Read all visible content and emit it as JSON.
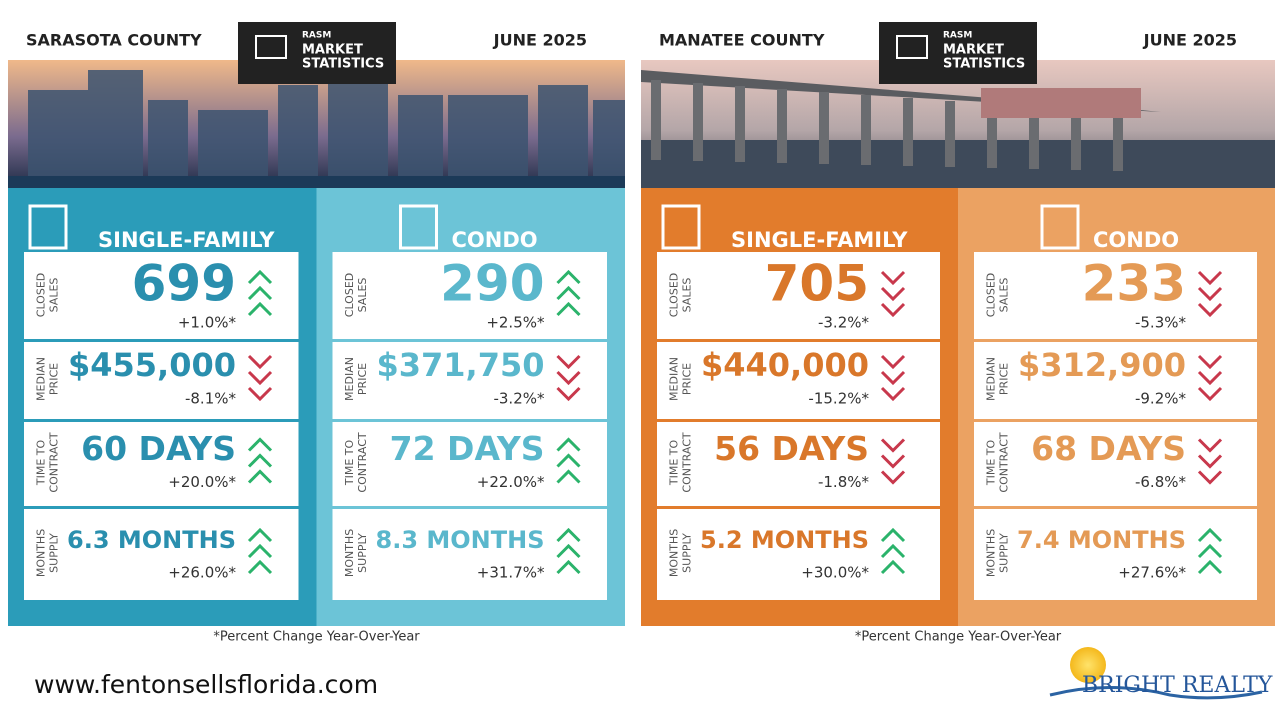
{
  "panels": [
    {
      "county": "SARASOTA COUNTY",
      "date": "JUNE 2025",
      "badge": [
        "RASM",
        "MARKET",
        "STATISTICS"
      ],
      "footnote": "*Percent Change Year-Over-Year",
      "sections": [
        {
          "title": "SINGLE-FAMILY",
          "background": "#2b9cb9",
          "color": "#2a8fae",
          "rows": [
            {
              "label": [
                "CLOSED",
                "SALES"
              ],
              "value": "699",
              "change": "+1.0%*",
              "arrow": "up"
            },
            {
              "label": [
                "MEDIAN",
                "PRICE"
              ],
              "value": "$455,000",
              "change": "-8.1%*",
              "arrow": "down"
            },
            {
              "label": [
                "TIME TO",
                "CONTRACT"
              ],
              "value": "60 DAYS",
              "change": "+20.0%*",
              "arrow": "up"
            },
            {
              "label": [
                "MONTHS",
                "SUPPLY"
              ],
              "value": "6.3 MONTHS",
              "change": "+26.0%*",
              "arrow": "up"
            }
          ]
        },
        {
          "title": "CONDO",
          "background": "#6cc4d7",
          "color": "#5ab7cc",
          "rows": [
            {
              "label": [
                "CLOSED",
                "SALES"
              ],
              "value": "290",
              "change": "+2.5%*",
              "arrow": "up"
            },
            {
              "label": [
                "MEDIAN",
                "PRICE"
              ],
              "value": "$371,750",
              "change": "-3.2%*",
              "arrow": "down"
            },
            {
              "label": [
                "TIME TO",
                "CONTRACT"
              ],
              "value": "72 DAYS",
              "change": "+22.0%*",
              "arrow": "up"
            },
            {
              "label": [
                "MONTHS",
                "SUPPLY"
              ],
              "value": "8.3 MONTHS",
              "change": "+31.7%*",
              "arrow": "up"
            }
          ]
        }
      ]
    },
    {
      "county": "MANATEE COUNTY",
      "date": "JUNE 2025",
      "badge": [
        "RASM",
        "MARKET",
        "STATISTICS"
      ],
      "footnote": "*Percent Change Year-Over-Year",
      "sections": [
        {
          "title": "SINGLE-FAMILY",
          "background": "#e27c2c",
          "color": "#d9772a",
          "rows": [
            {
              "label": [
                "CLOSED",
                "SALES"
              ],
              "value": "705",
              "change": "-3.2%*",
              "arrow": "down"
            },
            {
              "label": [
                "MEDIAN",
                "PRICE"
              ],
              "value": "$440,000",
              "change": "-15.2%*",
              "arrow": "down"
            },
            {
              "label": [
                "TIME TO",
                "CONTRACT"
              ],
              "value": "56 DAYS",
              "change": "-1.8%*",
              "arrow": "down"
            },
            {
              "label": [
                "MONTHS",
                "SUPPLY"
              ],
              "value": "5.2 MONTHS",
              "change": "+30.0%*",
              "arrow": "up"
            }
          ]
        },
        {
          "title": "CONDO",
          "background": "#eba262",
          "color": "#e49a55",
          "rows": [
            {
              "label": [
                "CLOSED",
                "SALES"
              ],
              "value": "233",
              "change": "-5.3%*",
              "arrow": "down"
            },
            {
              "label": [
                "MEDIAN",
                "PRICE"
              ],
              "value": "$312,900",
              "change": "-9.2%*",
              "arrow": "down"
            },
            {
              "label": [
                "TIME TO",
                "CONTRACT"
              ],
              "value": "68 DAYS",
              "change": "-6.8%*",
              "arrow": "down"
            },
            {
              "label": [
                "MONTHS",
                "SUPPLY"
              ],
              "value": "7.4 MONTHS",
              "change": "+27.6%*",
              "arrow": "up"
            }
          ]
        }
      ]
    }
  ],
  "website": "www.fentonsellsflorida.com",
  "logo": "BRIGHT REALTY"
}
